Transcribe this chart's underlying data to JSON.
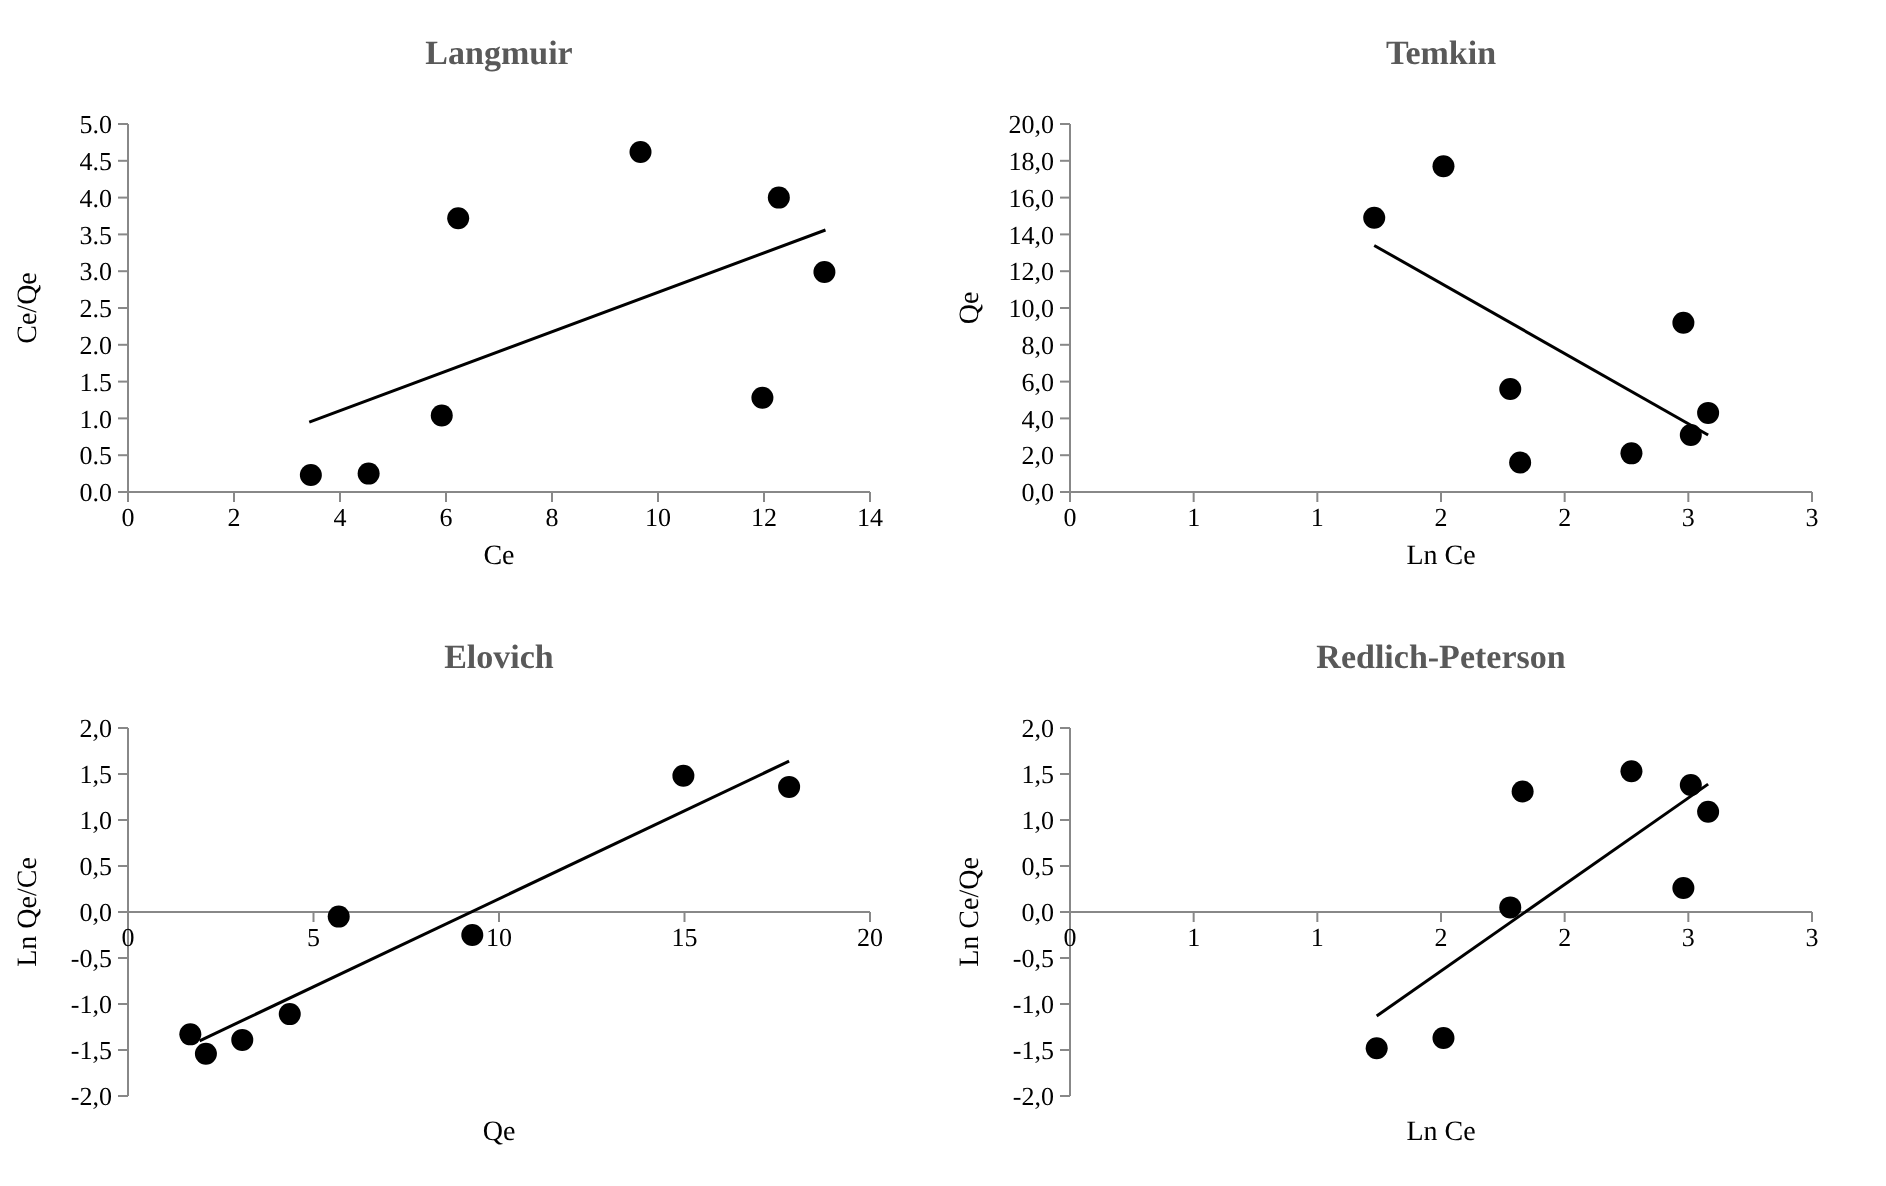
{
  "chart_data": [
    {
      "type": "scatter",
      "title": "Langmuir",
      "xlabel": "Ce",
      "ylabel": "Ce/Qe",
      "xlim": [
        0,
        14
      ],
      "xticks": [
        0,
        2,
        4,
        6,
        8,
        10,
        12,
        14
      ],
      "ylim": [
        0,
        5
      ],
      "yticks": [
        {
          "value": 0,
          "label": "0.0"
        },
        {
          "value": 0.5,
          "label": "0.5"
        },
        {
          "value": 1,
          "label": "1.0"
        },
        {
          "value": 1.5,
          "label": "1.5"
        },
        {
          "value": 2,
          "label": "2.0"
        },
        {
          "value": 2.5,
          "label": "2.5"
        },
        {
          "value": 3,
          "label": "3.0"
        },
        {
          "value": 3.5,
          "label": "3.5"
        },
        {
          "value": 4,
          "label": "4.0"
        },
        {
          "value": 4.5,
          "label": "4.5"
        },
        {
          "value": 5,
          "label": "5.0"
        }
      ],
      "series": [
        {
          "marker": "circle",
          "color": "#000000",
          "x": [
            3.45,
            4.54,
            5.92,
            6.23,
            9.67,
            11.97,
            12.28,
            13.14
          ],
          "values": [
            0.23,
            0.25,
            1.04,
            3.72,
            4.62,
            1.28,
            4.0,
            2.99
          ]
        },
        {
          "type": "line",
          "color": "#000000",
          "x": [
            3.42,
            13.16
          ],
          "values": [
            0.95,
            3.56
          ]
        }
      ]
    },
    {
      "type": "scatter",
      "title": "Temkin",
      "xlabel": "Ln Ce",
      "ylabel": "Qe",
      "xlim": [
        0,
        3
      ],
      "xticks": [
        {
          "value": 0,
          "label": "0"
        },
        {
          "value": 0.5,
          "label": "1"
        },
        {
          "value": 1,
          "label": "1"
        },
        {
          "value": 1.5,
          "label": "2"
        },
        {
          "value": 2,
          "label": "2"
        },
        {
          "value": 2.5,
          "label": "3"
        },
        {
          "value": 3,
          "label": "3"
        }
      ],
      "ylim": [
        0,
        20
      ],
      "yticks": [
        {
          "value": 0,
          "label": "0,0"
        },
        {
          "value": 2,
          "label": "2,0"
        },
        {
          "value": 4,
          "label": "4,0"
        },
        {
          "value": 6,
          "label": "6,0"
        },
        {
          "value": 8,
          "label": "8,0"
        },
        {
          "value": 10,
          "label": "10,0"
        },
        {
          "value": 12,
          "label": "12,0"
        },
        {
          "value": 14,
          "label": "14,0"
        },
        {
          "value": 16,
          "label": "16,0"
        },
        {
          "value": 18,
          "label": "18,0"
        },
        {
          "value": 20,
          "label": "20,0"
        }
      ],
      "series": [
        {
          "marker": "circle",
          "color": "#000000",
          "x": [
            1.23,
            1.51,
            1.78,
            1.82,
            2.27,
            2.48,
            2.51,
            2.58
          ],
          "values": [
            14.9,
            17.7,
            5.6,
            1.6,
            2.1,
            9.2,
            3.1,
            4.3
          ]
        },
        {
          "type": "line",
          "color": "#000000",
          "x": [
            1.23,
            2.58
          ],
          "values": [
            13.4,
            3.1
          ]
        }
      ]
    },
    {
      "type": "scatter",
      "title": "Elovich",
      "xlabel": "Qe",
      "ylabel": "Ln Qe/Ce",
      "xlim": [
        0,
        20
      ],
      "xticks": [
        0,
        5,
        10,
        15,
        20
      ],
      "ylim": [
        -2,
        2
      ],
      "yticks": [
        {
          "value": -2,
          "label": "-2,0"
        },
        {
          "value": -1.5,
          "label": "-1,5"
        },
        {
          "value": -1,
          "label": "-1,0"
        },
        {
          "value": -0.5,
          "label": "-0,5"
        },
        {
          "value": 0,
          "label": "0,0"
        },
        {
          "value": 0.5,
          "label": "0,5"
        },
        {
          "value": 1,
          "label": "1,0"
        },
        {
          "value": 1.5,
          "label": "1,5"
        },
        {
          "value": 2,
          "label": "2,0"
        }
      ],
      "series": [
        {
          "marker": "circle",
          "color": "#000000",
          "x": [
            1.68,
            2.1,
            3.08,
            4.36,
            5.68,
            9.28,
            14.97,
            17.82
          ],
          "values": [
            -1.33,
            -1.54,
            -1.39,
            -1.11,
            -0.05,
            -0.25,
            1.48,
            1.36
          ]
        },
        {
          "type": "line",
          "color": "#000000",
          "x": [
            1.93,
            17.82
          ],
          "values": [
            -1.4,
            1.64
          ]
        }
      ]
    },
    {
      "type": "scatter",
      "title": "Redlich-Peterson",
      "xlabel": "Ln Ce",
      "ylabel": "Ln Ce/Qe",
      "xlim": [
        0,
        3
      ],
      "xticks": [
        {
          "value": 0,
          "label": "0"
        },
        {
          "value": 0.5,
          "label": "1"
        },
        {
          "value": 1,
          "label": "1"
        },
        {
          "value": 1.5,
          "label": "2"
        },
        {
          "value": 2,
          "label": "2"
        },
        {
          "value": 2.5,
          "label": "3"
        },
        {
          "value": 3,
          "label": "3"
        }
      ],
      "ylim": [
        -2,
        2
      ],
      "yticks": [
        {
          "value": -2,
          "label": "-2,0"
        },
        {
          "value": -1.5,
          "label": "-1,5"
        },
        {
          "value": -1,
          "label": "-1,0"
        },
        {
          "value": -0.5,
          "label": "-0,5"
        },
        {
          "value": 0,
          "label": "0,0"
        },
        {
          "value": 0.5,
          "label": "0,5"
        },
        {
          "value": 1,
          "label": "1,0"
        },
        {
          "value": 1.5,
          "label": "1,5"
        },
        {
          "value": 2,
          "label": "2,0"
        }
      ],
      "series": [
        {
          "marker": "circle",
          "color": "#000000",
          "x": [
            1.24,
            1.51,
            1.78,
            1.83,
            2.27,
            2.48,
            2.51,
            2.58
          ],
          "values": [
            -1.48,
            -1.37,
            0.05,
            1.31,
            1.53,
            0.26,
            1.38,
            1.09
          ]
        },
        {
          "type": "line",
          "color": "#000000",
          "x": [
            1.24,
            2.58
          ],
          "values": [
            -1.13,
            1.39
          ]
        }
      ]
    }
  ]
}
